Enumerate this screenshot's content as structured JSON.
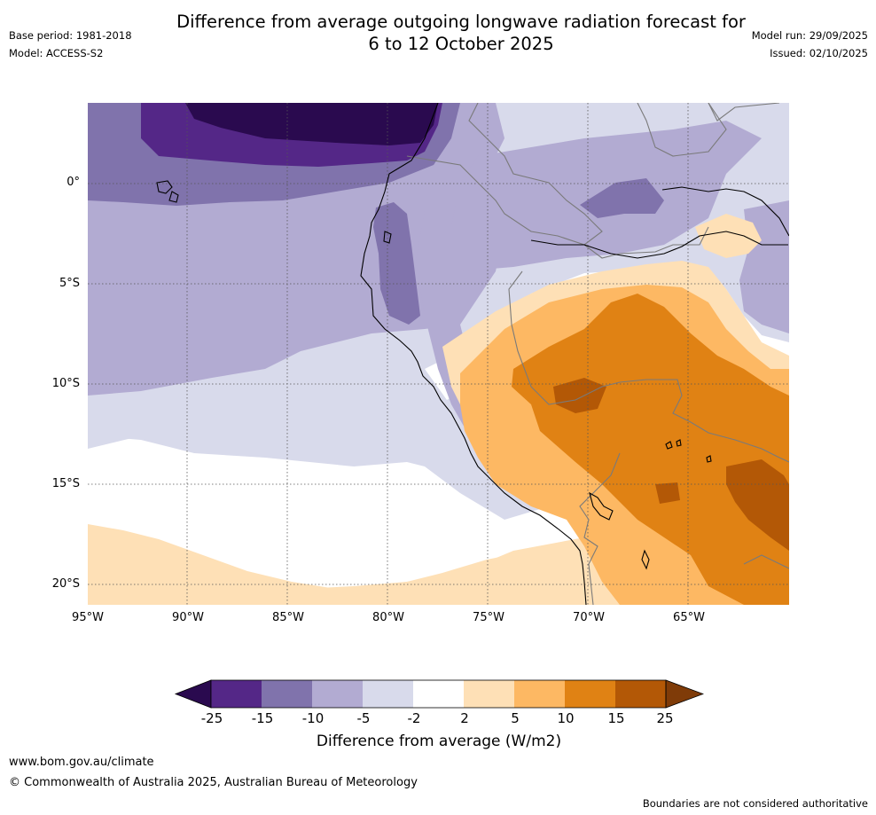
{
  "header": {
    "title_line1": "Difference from average outgoing longwave radiation forecast for",
    "title_line2": "6 to 12 October 2025",
    "base_period": "Base period: 1981-2018",
    "model": "Model: ACCESS-S2",
    "model_run": "Model run: 29/09/2025",
    "issued": "Issued: 02/10/2025"
  },
  "map": {
    "lat_labels": [
      "0°",
      "5°S",
      "10°S",
      "15°S",
      "20°S"
    ],
    "lon_labels": [
      "95°W",
      "90°W",
      "85°W",
      "80°W",
      "75°W",
      "70°W",
      "65°W"
    ]
  },
  "colorbar": {
    "tick_labels": [
      "-25",
      "-15",
      "-10",
      "-5",
      "-2",
      "2",
      "5",
      "10",
      "15",
      "25"
    ],
    "label": "Difference from average (W/m2)",
    "colors": [
      "#2a0a4f",
      "#542787",
      "#8073ac",
      "#b2abd2",
      "#d8daeb",
      "#ffffff",
      "#fee0b6",
      "#fdb863",
      "#e08214",
      "#b35806",
      "#7f3b08"
    ]
  },
  "footer": {
    "url": "www.bom.gov.au/climate",
    "copyright": "© Commonwealth of Australia 2025, Australian Bureau of Meteorology",
    "disclaimer": "Boundaries are not considered authoritative"
  }
}
